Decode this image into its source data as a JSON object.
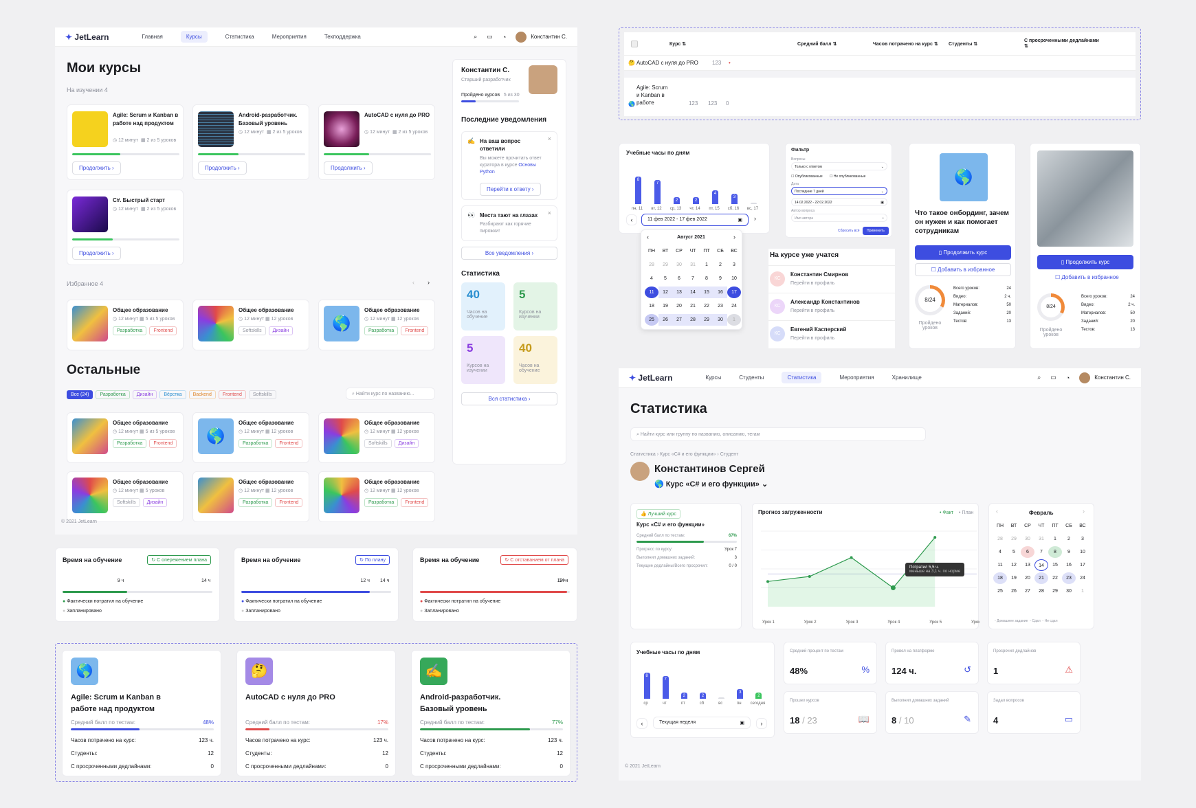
{
  "app": {
    "brand": "JetLearn",
    "footer": "© 2021 JetLearn"
  },
  "nav1": {
    "items": [
      "Главная",
      "Курсы",
      "Статистика",
      "Мероприятия",
      "Техподдержка"
    ],
    "user": "Константин С."
  },
  "my": {
    "title": "Мои курсы",
    "studying": "На изучении 4",
    "favorites": "Избранное 4",
    "others": "Остальные",
    "continue": "Продолжить",
    "courses": [
      {
        "title": "Agile: Scrum и Kanban в работе над продуктом",
        "meta1": "12 минут",
        "meta2": "2 из 5 уроков",
        "progress": 0.45,
        "color": "#f5d21e"
      },
      {
        "title": "Android-разработчик. Базовый уровень",
        "meta1": "12 минут",
        "meta2": "2 из 5 уроков",
        "progress": 0.38,
        "color": "#2b3443"
      },
      {
        "title": "AutoCAD с нуля до PRO",
        "meta1": "12 минут",
        "meta2": "2 из 5 уроков",
        "progress": 0.42,
        "color": "#7a1f5a"
      },
      {
        "title": "C#. Быстрый старт",
        "meta1": "12 минут",
        "meta2": "2 из 5 уроков",
        "progress": 0.38,
        "color": "#3a1a7a"
      }
    ],
    "fav": [
      {
        "title": "Общее образование",
        "m1": "12 минут",
        "m2": "5 из 5 уроков",
        "t1": "Разработка",
        "t2": "Frontend"
      },
      {
        "title": "Общее образование",
        "m1": "12 минут",
        "m2": "12 уроков",
        "t1": "Softskills",
        "t2": "Дизайн"
      },
      {
        "title": "Общее образование",
        "m1": "12 минут",
        "m2": "12 уроков",
        "t1": "Разработка",
        "t2": "Frontend"
      }
    ],
    "filters": [
      "Все (24)",
      "Разработка",
      "Дизайн",
      "Вёрстка",
      "Backend",
      "Frontend",
      "Softskills"
    ],
    "search_placeholder": "Найти курс по названию...",
    "rest": [
      {
        "title": "Общее образование",
        "m1": "12 минут",
        "m2": "5 из 5 уроков",
        "t1": "Разработка",
        "t2": "Frontend"
      },
      {
        "title": "Общее образование",
        "m1": "12 минут",
        "m2": "12 уроков",
        "t1": "Разработка",
        "t2": "Frontend"
      },
      {
        "title": "Общее образование",
        "m1": "12 минут",
        "m2": "12 уроков",
        "t1": "Softskills",
        "t2": "Дизайн"
      },
      {
        "title": "Общее образование",
        "m1": "12 минут",
        "m2": "5 уроков",
        "t1": "Softskills",
        "t2": "Дизайн"
      },
      {
        "title": "Общее образование",
        "m1": "12 минут",
        "m2": "12 уроков",
        "t1": "Разработка",
        "t2": "Frontend"
      },
      {
        "title": "Общее образование",
        "m1": "12 минут",
        "m2": "12 уроков",
        "t1": "Разработка",
        "t2": "Frontend"
      }
    ]
  },
  "side": {
    "name": "Константин С.",
    "role": "Старший разработчик",
    "passed_label": "Пройдено курсов",
    "passed_val": "5 из 30",
    "notif_title": "Последние уведомления",
    "n1_title": "На ваш вопрос ответили",
    "n1_text": "Вы можете прочитать ответ куратора в курсе",
    "n1_link": "Основы Python",
    "n1_btn": "Перейти к ответу",
    "n2_title": "Места тают на глазах",
    "n2_text": "Разбирают как горячие пирожки!",
    "all_notif": "Все уведомления",
    "stats_title": "Статистика",
    "s": [
      {
        "v": "40",
        "l": "Часов на обучение"
      },
      {
        "v": "5",
        "l": "Курсов на изучении"
      },
      {
        "v": "5",
        "l": "Курсов на изучении"
      },
      {
        "v": "40",
        "l": "Часов на обучение"
      }
    ],
    "all_stats": "Вся статистика"
  },
  "time": [
    {
      "title": "Время на обучение",
      "badge": "С опережением плана",
      "a": "9 ч",
      "b": "14 ч",
      "color": "#2e9a4e",
      "fact": 0.43
    },
    {
      "title": "Время на обучение",
      "badge": "По плану",
      "a": "12 ч",
      "b": "14 ч",
      "color": "#3d4de0",
      "fact": 0.86
    },
    {
      "title": "Время на обучение",
      "badge": "С отставанием от плана",
      "a": "12 ч",
      "b": "14 ч",
      "color": "#e04a4a",
      "fact": 0.98
    }
  ],
  "time_legend": {
    "fact": "Фактически потратил на обучение",
    "plan": "Запланировано"
  },
  "big": [
    {
      "title": "Agile: Scrum и Kanban в работе над продуктом",
      "score": "48%",
      "color": "#3d4de0",
      "p": 0.48,
      "hours": "123 ч.",
      "students": "12",
      "late": "0",
      "icon": "🌎",
      "bg": "#7cb7ec"
    },
    {
      "title": "AutoCAD с нуля до PRO",
      "score": "17%",
      "color": "#e04a4a",
      "p": 0.17,
      "hours": "123 ч.",
      "students": "12",
      "late": "0",
      "icon": "🤔",
      "bg": "#a48ae6"
    },
    {
      "title": "Android-разработчик. Базовый уровень",
      "score": "77%",
      "color": "#2e9a4e",
      "p": 0.77,
      "hours": "123 ч.",
      "students": "12",
      "late": "0",
      "icon": "✍",
      "bg": "#36a85a"
    }
  ],
  "big_labels": {
    "score": "Средний балл по тестам:",
    "hours": "Часов потрачено на курс:",
    "students": "Студенты:",
    "late": "С просроченными дедлайнами:"
  },
  "table": {
    "cols": [
      "Курс",
      "Средний балл",
      "Часов потрачено на курс",
      "Студенты",
      "С просроченными дедлайнами"
    ],
    "r1": {
      "name": "AutoCAD с нуля до PRO",
      "v": "123"
    },
    "r2": {
      "name": "Agile: Scrum и Kanban в работе",
      "v1": "123",
      "v2": "123",
      "v3": "0"
    }
  },
  "hours_widget": {
    "title": "Учебные часы по дням",
    "days": [
      "пн, 11",
      "вт, 12",
      "ср, 13",
      "чт, 14",
      "пт, 15",
      "сб, 16",
      "вс, 17"
    ],
    "vals": [
      8,
      7,
      2,
      2,
      4,
      3,
      0
    ],
    "range": "11 фев 2022 - 17 фев 2022",
    "month": "Август 2021",
    "wd": [
      "ПН",
      "ВТ",
      "СР",
      "ЧТ",
      "ПТ",
      "СБ",
      "ВС"
    ],
    "weeks": [
      [
        "28",
        "29",
        "30",
        "31",
        "1",
        "2",
        "3"
      ],
      [
        "4",
        "5",
        "6",
        "7",
        "8",
        "9",
        "10"
      ],
      [
        "11",
        "12",
        "13",
        "14",
        "15",
        "16",
        "17"
      ],
      [
        "18",
        "19",
        "20",
        "21",
        "22",
        "23",
        "24"
      ],
      [
        "25",
        "26",
        "27",
        "28",
        "29",
        "30",
        "1"
      ]
    ]
  },
  "filter": {
    "title": "Фильтр",
    "l1": "Вопросы",
    "v1": "Только с ответом",
    "c1": "Опубликованные",
    "c2": "Не опубликованные",
    "l2": "Дата",
    "v2": "Последние 7 дней",
    "v3": "14.02.2022 - 22.02.2022",
    "l3": "Автор вопроса",
    "p3": "Имя автора",
    "reset": "Сбросить всё",
    "apply": "Применить"
  },
  "students": {
    "title": "На курсе уже учатся",
    "link": "Перейти в профиль",
    "list": [
      {
        "n": "Константин Смирнов",
        "i": "КС"
      },
      {
        "n": "Александр Константинов",
        "i": "КС"
      },
      {
        "n": "Евгений Касперский",
        "i": "КС"
      }
    ]
  },
  "promo": {
    "title": "Что такое онбординг, зачем он нужен и как помогает сотрудникам",
    "cont": "Продолжить курс",
    "fav": "Добавить в избранное",
    "done": "8/24",
    "done_l": "Пройдено уроков",
    "rows": [
      [
        "Всего уроков:",
        "24"
      ],
      [
        "Видео:",
        "2 ч."
      ],
      [
        "Материалов:",
        "50"
      ],
      [
        "Заданий:",
        "20"
      ],
      [
        "Тестов:",
        "13"
      ]
    ]
  },
  "stat": {
    "nav": [
      "Курсы",
      "Студенты",
      "Статистика",
      "Мероприятия",
      "Хранилище"
    ],
    "user": "Константин С.",
    "title": "Статистика",
    "search": "Найти курс или группу по названию, описанию, тегам",
    "crumbs": [
      "Статистика",
      "Курс «C# и его функции»",
      "Студент"
    ],
    "student": "Константинов Сергей",
    "course": "Курс «C# и его функции»",
    "best": "Лучший курс",
    "card_title": "Курс «C# и его функции»",
    "score_l": "Средний балл по тестам:",
    "score": "67%",
    "prog_l": "Прогресс по курсу:",
    "prog": "Урок 7",
    "hw_l": "Выполнил домашних заданий:",
    "hw": "3",
    "dl_l": "Текущие дедлайны/Всего просрочил:",
    "dl": "0 / 0",
    "forecast": "Прогноз загруженности",
    "fact": "Факт",
    "plan": "План",
    "tip1": "Потратил 5,5 ч.",
    "tip2": "меньше на 3,1 ч. по норме",
    "lessons": [
      "Урок 1",
      "Урок 2",
      "Урок 3",
      "Урок 4",
      "Урок 5",
      "Урок 6"
    ],
    "fact_vals": [
      2,
      2.4,
      3.9,
      1.5,
      5.5
    ],
    "month": "Февраль",
    "leg": [
      "Домашнее задание",
      "Сдал",
      "Не сдал"
    ],
    "hours_title": "Учебные часы по дням",
    "hdays": [
      "ср",
      "чт",
      "пт",
      "сб",
      "вс",
      "пн",
      "сегодня"
    ],
    "hvals": [
      8,
      7,
      2,
      2,
      0,
      3,
      2
    ],
    "week": "Текущая неделя",
    "kpi": [
      {
        "l": "Средний процент по тестам",
        "v": "48%"
      },
      {
        "l": "Провел на платформе",
        "v": "124 ч."
      },
      {
        "l": "Просрочил дедлайнов",
        "v": "1"
      },
      {
        "l": "Прошел курсов",
        "v": "18",
        "s": "/ 23"
      },
      {
        "l": "Выполнил домашних заданий",
        "v": "8",
        "s": "/ 10"
      },
      {
        "l": "Задал вопросов",
        "v": "4"
      }
    ]
  }
}
